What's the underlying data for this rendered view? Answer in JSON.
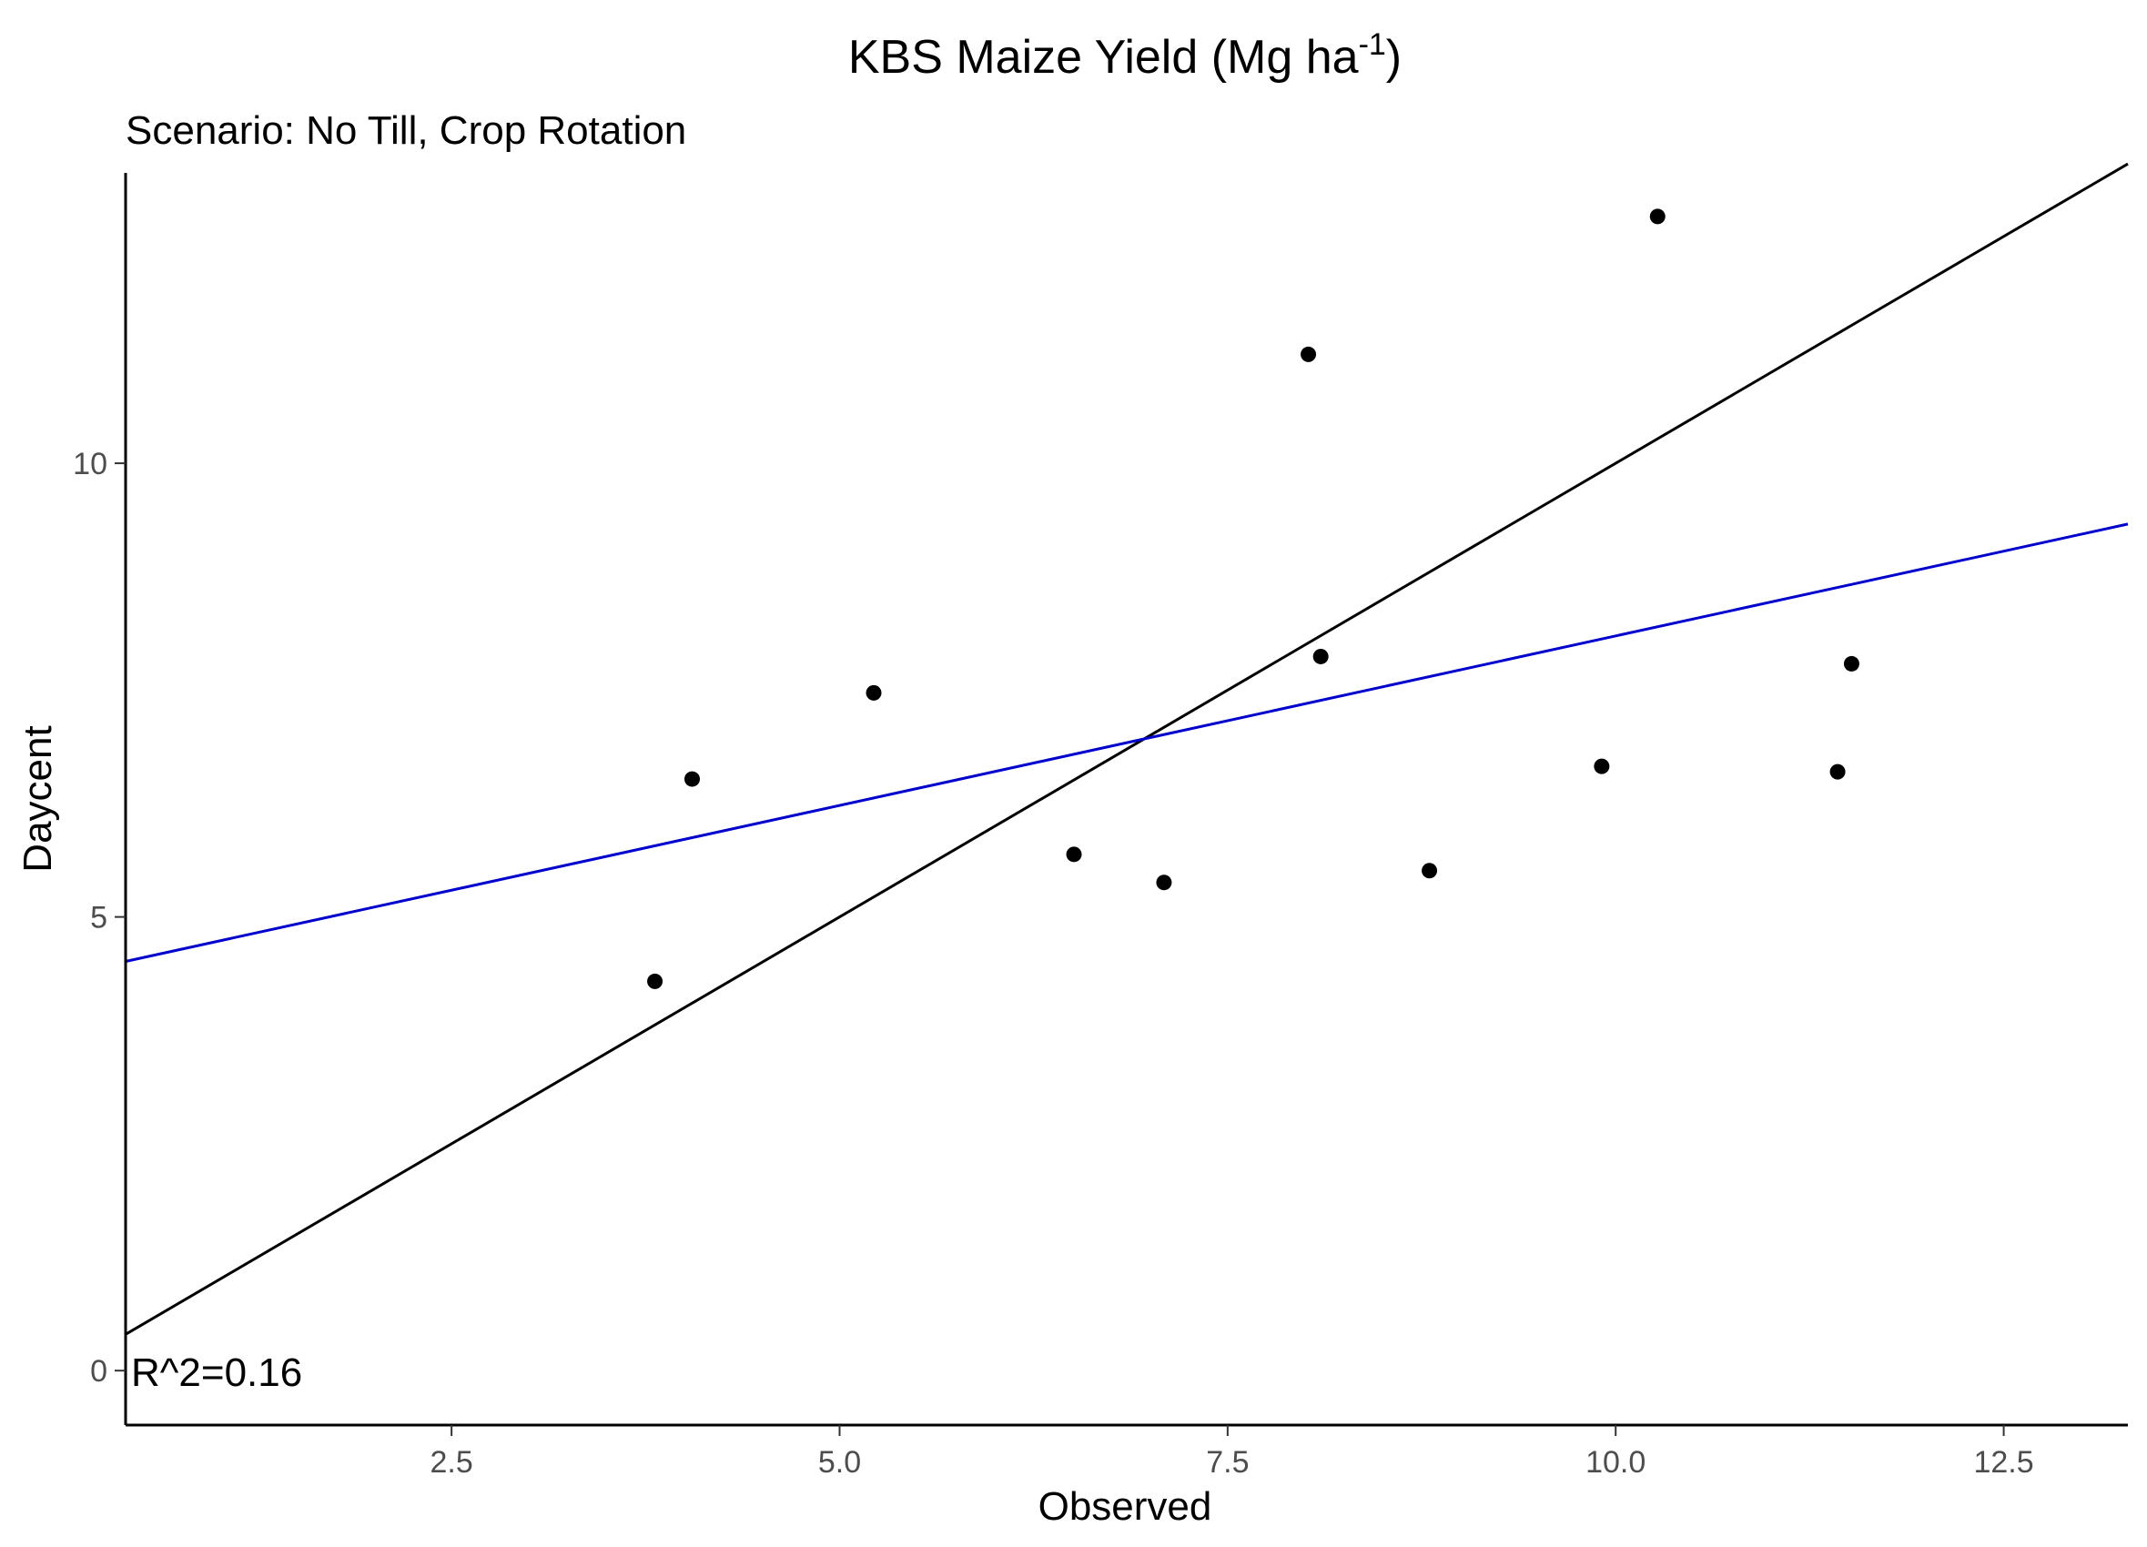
{
  "chart_data": {
    "type": "scatter",
    "title": "KBS Maize Yield (Mg ha",
    "title_superscript": "-1",
    "title_suffix": ")",
    "subtitle": "Scenario: No Till, Crop Rotation",
    "xlabel": "Observed",
    "ylabel": "Daycent",
    "xlim": [
      0.4,
      13.3
    ],
    "ylim": [
      -0.6,
      13.2
    ],
    "x_ticks": [
      2.5,
      5.0,
      7.5,
      10.0,
      12.5
    ],
    "x_tick_labels": [
      "2.5",
      "5.0",
      "7.5",
      "10.0",
      "12.5"
    ],
    "y_ticks": [
      0,
      5,
      10
    ],
    "y_tick_labels": [
      "0",
      "5",
      "10"
    ],
    "grid": false,
    "points": [
      {
        "x": 3.81,
        "y": 4.29
      },
      {
        "x": 4.05,
        "y": 6.52
      },
      {
        "x": 5.22,
        "y": 7.47
      },
      {
        "x": 6.51,
        "y": 5.69
      },
      {
        "x": 7.09,
        "y": 5.38
      },
      {
        "x": 8.02,
        "y": 11.2
      },
      {
        "x": 8.1,
        "y": 7.87
      },
      {
        "x": 8.8,
        "y": 5.51
      },
      {
        "x": 9.91,
        "y": 6.66
      },
      {
        "x": 10.27,
        "y": 12.72
      },
      {
        "x": 11.43,
        "y": 6.6
      },
      {
        "x": 11.52,
        "y": 7.79
      }
    ],
    "lines": [
      {
        "role": "identity",
        "color": "#000000",
        "x": [
          0.4,
          13.3
        ],
        "y": [
          0.4,
          13.3
        ]
      },
      {
        "role": "regression",
        "color": "#0000cc",
        "x": [
          0.4,
          13.3
        ],
        "y": [
          4.51,
          9.33
        ]
      }
    ],
    "annotation": "R^2=0.16",
    "point_color": "#000000"
  }
}
